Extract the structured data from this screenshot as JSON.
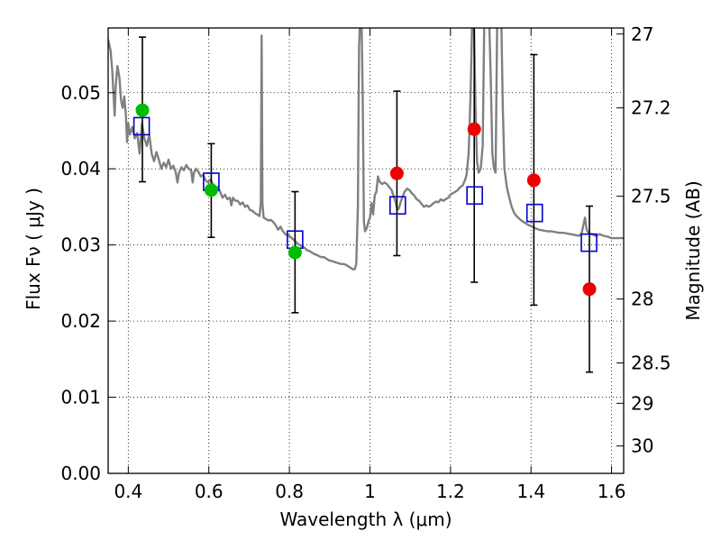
{
  "chart_data": {
    "type": "scatter",
    "xlabel": "Wavelength  λ (μm)",
    "ylabel": "Flux  Fν  ( μJy )",
    "ylabel_right": "Magnitude (AB)",
    "xlim": [
      0.35,
      1.63
    ],
    "ylim": [
      0,
      0.0585
    ],
    "grid": true,
    "x_ticks": [
      0.4,
      0.6,
      0.8,
      1.0,
      1.2,
      1.4,
      1.6
    ],
    "x_tick_labels": [
      "0.4",
      "0.6",
      "0.8",
      "1",
      "1.2",
      "1.4",
      "1.6"
    ],
    "y_ticks": [
      0,
      0.01,
      0.02,
      0.03,
      0.04,
      0.05
    ],
    "y_tick_labels": [
      "0.00",
      "0.01",
      "0.02",
      "0.03",
      "0.04",
      "0.05"
    ],
    "right_ticks": [
      {
        "label": "27",
        "flux": 0.0577
      },
      {
        "label": "27.2",
        "flux": 0.048
      },
      {
        "label": "27.5",
        "flux": 0.0364
      },
      {
        "label": "28",
        "flux": 0.0229
      },
      {
        "label": "28.5",
        "flux": 0.0145
      },
      {
        "label": "29",
        "flux": 0.0092
      },
      {
        "label": "30",
        "flux": 0.0036
      }
    ],
    "sed_model": {
      "color": "#808080",
      "points": [
        [
          0.35,
          0.057
        ],
        [
          0.356,
          0.0555
        ],
        [
          0.36,
          0.053
        ],
        [
          0.364,
          0.049
        ],
        [
          0.366,
          0.047
        ],
        [
          0.369,
          0.051
        ],
        [
          0.373,
          0.0535
        ],
        [
          0.378,
          0.052
        ],
        [
          0.382,
          0.049
        ],
        [
          0.386,
          0.048
        ],
        [
          0.39,
          0.0495
        ],
        [
          0.394,
          0.047
        ],
        [
          0.397,
          0.0435
        ],
        [
          0.4,
          0.046
        ],
        [
          0.404,
          0.0445
        ],
        [
          0.41,
          0.0455
        ],
        [
          0.416,
          0.044
        ],
        [
          0.422,
          0.0447
        ],
        [
          0.428,
          0.042
        ],
        [
          0.434,
          0.046
        ],
        [
          0.44,
          0.044
        ],
        [
          0.446,
          0.043
        ],
        [
          0.452,
          0.0445
        ],
        [
          0.458,
          0.042
        ],
        [
          0.464,
          0.041
        ],
        [
          0.47,
          0.0422
        ],
        [
          0.476,
          0.0412
        ],
        [
          0.482,
          0.04
        ],
        [
          0.488,
          0.0408
        ],
        [
          0.494,
          0.0402
        ],
        [
          0.5,
          0.0412
        ],
        [
          0.506,
          0.04
        ],
        [
          0.512,
          0.0404
        ],
        [
          0.518,
          0.0395
        ],
        [
          0.522,
          0.0382
        ],
        [
          0.526,
          0.0395
        ],
        [
          0.532,
          0.0402
        ],
        [
          0.538,
          0.0398
        ],
        [
          0.544,
          0.0405
        ],
        [
          0.55,
          0.04
        ],
        [
          0.556,
          0.0398
        ],
        [
          0.56,
          0.0382
        ],
        [
          0.563,
          0.0395
        ],
        [
          0.568,
          0.04
        ],
        [
          0.574,
          0.0396
        ],
        [
          0.58,
          0.039
        ],
        [
          0.586,
          0.0392
        ],
        [
          0.592,
          0.0385
        ],
        [
          0.598,
          0.0382
        ],
        [
          0.604,
          0.0386
        ],
        [
          0.61,
          0.038
        ],
        [
          0.616,
          0.0372
        ],
        [
          0.622,
          0.0376
        ],
        [
          0.628,
          0.037
        ],
        [
          0.634,
          0.0362
        ],
        [
          0.64,
          0.0366
        ],
        [
          0.646,
          0.036
        ],
        [
          0.652,
          0.0362
        ],
        [
          0.656,
          0.0352
        ],
        [
          0.66,
          0.0362
        ],
        [
          0.666,
          0.0358
        ],
        [
          0.672,
          0.0358
        ],
        [
          0.678,
          0.0353
        ],
        [
          0.684,
          0.0356
        ],
        [
          0.69,
          0.035
        ],
        [
          0.696,
          0.0352
        ],
        [
          0.702,
          0.0346
        ],
        [
          0.708,
          0.0345
        ],
        [
          0.714,
          0.0342
        ],
        [
          0.72,
          0.034
        ],
        [
          0.726,
          0.0338
        ],
        [
          0.729,
          0.0355
        ],
        [
          0.731,
          0.0575
        ],
        [
          0.733,
          0.0355
        ],
        [
          0.736,
          0.0336
        ],
        [
          0.742,
          0.0334
        ],
        [
          0.748,
          0.0332
        ],
        [
          0.754,
          0.0333
        ],
        [
          0.76,
          0.033
        ],
        [
          0.766,
          0.0326
        ],
        [
          0.772,
          0.032
        ],
        [
          0.778,
          0.0324
        ],
        [
          0.784,
          0.0318
        ],
        [
          0.79,
          0.0314
        ],
        [
          0.796,
          0.0313
        ],
        [
          0.802,
          0.0311
        ],
        [
          0.808,
          0.0308
        ],
        [
          0.814,
          0.0305
        ],
        [
          0.82,
          0.0302
        ],
        [
          0.826,
          0.03
        ],
        [
          0.832,
          0.0298
        ],
        [
          0.838,
          0.0296
        ],
        [
          0.844,
          0.0293
        ],
        [
          0.85,
          0.0292
        ],
        [
          0.856,
          0.029
        ],
        [
          0.862,
          0.0288
        ],
        [
          0.868,
          0.0287
        ],
        [
          0.874,
          0.0285
        ],
        [
          0.88,
          0.0284
        ],
        [
          0.886,
          0.0284
        ],
        [
          0.892,
          0.0282
        ],
        [
          0.898,
          0.028
        ],
        [
          0.904,
          0.0279
        ],
        [
          0.91,
          0.0278
        ],
        [
          0.916,
          0.0277
        ],
        [
          0.922,
          0.0276
        ],
        [
          0.928,
          0.0275
        ],
        [
          0.934,
          0.0275
        ],
        [
          0.94,
          0.0274
        ],
        [
          0.946,
          0.0272
        ],
        [
          0.952,
          0.027
        ],
        [
          0.958,
          0.0268
        ],
        [
          0.962,
          0.0268
        ],
        [
          0.966,
          0.0275
        ],
        [
          0.97,
          0.035
        ],
        [
          0.973,
          0.056
        ],
        [
          0.976,
          0.06
        ],
        [
          0.979,
          0.06
        ],
        [
          0.982,
          0.05
        ],
        [
          0.985,
          0.033
        ],
        [
          0.988,
          0.0318
        ],
        [
          0.992,
          0.0322
        ],
        [
          0.996,
          0.033
        ],
        [
          1.0,
          0.0336
        ],
        [
          1.004,
          0.0355
        ],
        [
          1.008,
          0.034
        ],
        [
          1.012,
          0.0365
        ],
        [
          1.016,
          0.037
        ],
        [
          1.02,
          0.039
        ],
        [
          1.024,
          0.0383
        ],
        [
          1.03,
          0.038
        ],
        [
          1.036,
          0.0382
        ],
        [
          1.042,
          0.038
        ],
        [
          1.048,
          0.0376
        ],
        [
          1.054,
          0.0372
        ],
        [
          1.06,
          0.0362
        ],
        [
          1.064,
          0.0356
        ],
        [
          1.068,
          0.0346
        ],
        [
          1.072,
          0.0348
        ],
        [
          1.076,
          0.0356
        ],
        [
          1.08,
          0.0362
        ],
        [
          1.086,
          0.037
        ],
        [
          1.092,
          0.0374
        ],
        [
          1.098,
          0.0372
        ],
        [
          1.104,
          0.0368
        ],
        [
          1.11,
          0.0365
        ],
        [
          1.116,
          0.036
        ],
        [
          1.122,
          0.0358
        ],
        [
          1.128,
          0.0354
        ],
        [
          1.134,
          0.035
        ],
        [
          1.14,
          0.0352
        ],
        [
          1.146,
          0.035
        ],
        [
          1.152,
          0.0352
        ],
        [
          1.158,
          0.0355
        ],
        [
          1.164,
          0.0357
        ],
        [
          1.17,
          0.0356
        ],
        [
          1.176,
          0.036
        ],
        [
          1.182,
          0.0358
        ],
        [
          1.188,
          0.036
        ],
        [
          1.194,
          0.0362
        ],
        [
          1.2,
          0.0366
        ],
        [
          1.206,
          0.0368
        ],
        [
          1.212,
          0.037
        ],
        [
          1.218,
          0.0372
        ],
        [
          1.224,
          0.0376
        ],
        [
          1.23,
          0.0378
        ],
        [
          1.236,
          0.0385
        ],
        [
          1.24,
          0.0392
        ],
        [
          1.245,
          0.042
        ],
        [
          1.25,
          0.05
        ],
        [
          1.254,
          0.06
        ],
        [
          1.258,
          0.06
        ],
        [
          1.262,
          0.048
        ],
        [
          1.266,
          0.041
        ],
        [
          1.27,
          0.0395
        ],
        [
          1.275,
          0.04
        ],
        [
          1.28,
          0.043
        ],
        [
          1.284,
          0.06
        ],
        [
          1.296,
          0.06
        ],
        [
          1.3,
          0.052
        ],
        [
          1.304,
          0.042
        ],
        [
          1.308,
          0.04
        ],
        [
          1.312,
          0.0395
        ],
        [
          1.316,
          0.06
        ],
        [
          1.326,
          0.06
        ],
        [
          1.33,
          0.048
        ],
        [
          1.334,
          0.04
        ],
        [
          1.34,
          0.0376
        ],
        [
          1.346,
          0.0362
        ],
        [
          1.352,
          0.035
        ],
        [
          1.358,
          0.0342
        ],
        [
          1.364,
          0.0338
        ],
        [
          1.37,
          0.0335
        ],
        [
          1.376,
          0.0332
        ],
        [
          1.382,
          0.033
        ],
        [
          1.388,
          0.0328
        ],
        [
          1.394,
          0.0326
        ],
        [
          1.4,
          0.0325
        ],
        [
          1.41,
          0.0322
        ],
        [
          1.42,
          0.032
        ],
        [
          1.43,
          0.0319
        ],
        [
          1.44,
          0.0318
        ],
        [
          1.45,
          0.0318
        ],
        [
          1.46,
          0.0317
        ],
        [
          1.47,
          0.0316
        ],
        [
          1.48,
          0.0316
        ],
        [
          1.49,
          0.0315
        ],
        [
          1.5,
          0.0314
        ],
        [
          1.51,
          0.0313
        ],
        [
          1.52,
          0.0312
        ],
        [
          1.526,
          0.0316
        ],
        [
          1.53,
          0.0326
        ],
        [
          1.534,
          0.0336
        ],
        [
          1.538,
          0.032
        ],
        [
          1.544,
          0.0315
        ],
        [
          1.552,
          0.0314
        ],
        [
          1.56,
          0.0312
        ],
        [
          1.57,
          0.0314
        ],
        [
          1.58,
          0.0312
        ],
        [
          1.59,
          0.0311
        ],
        [
          1.6,
          0.0309
        ],
        [
          1.61,
          0.0309
        ],
        [
          1.62,
          0.0309
        ],
        [
          1.63,
          0.0309
        ]
      ]
    },
    "model_photometry": {
      "marker": "open-square",
      "color": "#0000cc",
      "points": [
        {
          "x": 0.433,
          "y": 0.0456
        },
        {
          "x": 0.606,
          "y": 0.0383
        },
        {
          "x": 0.814,
          "y": 0.0307
        },
        {
          "x": 1.069,
          "y": 0.0352
        },
        {
          "x": 1.26,
          "y": 0.0365
        },
        {
          "x": 1.409,
          "y": 0.0342
        },
        {
          "x": 1.544,
          "y": 0.0303
        }
      ]
    },
    "observed_detections": {
      "marker": "filled-circle",
      "color": "#00bb00",
      "points": [
        {
          "x": 0.435,
          "y": 0.0477,
          "err_low": 0.0383,
          "err_high": 0.0573
        },
        {
          "x": 0.606,
          "y": 0.0372,
          "err_low": 0.031,
          "err_high": 0.0433
        },
        {
          "x": 0.814,
          "y": 0.029,
          "err_low": 0.0211,
          "err_high": 0.037
        }
      ]
    },
    "observed_other": {
      "marker": "filled-circle",
      "color": "#ee0000",
      "points": [
        {
          "x": 1.067,
          "y": 0.0394,
          "err_low": 0.0286,
          "err_high": 0.0502
        },
        {
          "x": 1.259,
          "y": 0.0452,
          "err_low": 0.0251,
          "err_high": 0.0595
        },
        {
          "x": 1.407,
          "y": 0.0385,
          "err_low": 0.0221,
          "err_high": 0.055
        },
        {
          "x": 1.545,
          "y": 0.0242,
          "err_low": 0.0133,
          "err_high": 0.0351
        }
      ]
    }
  }
}
